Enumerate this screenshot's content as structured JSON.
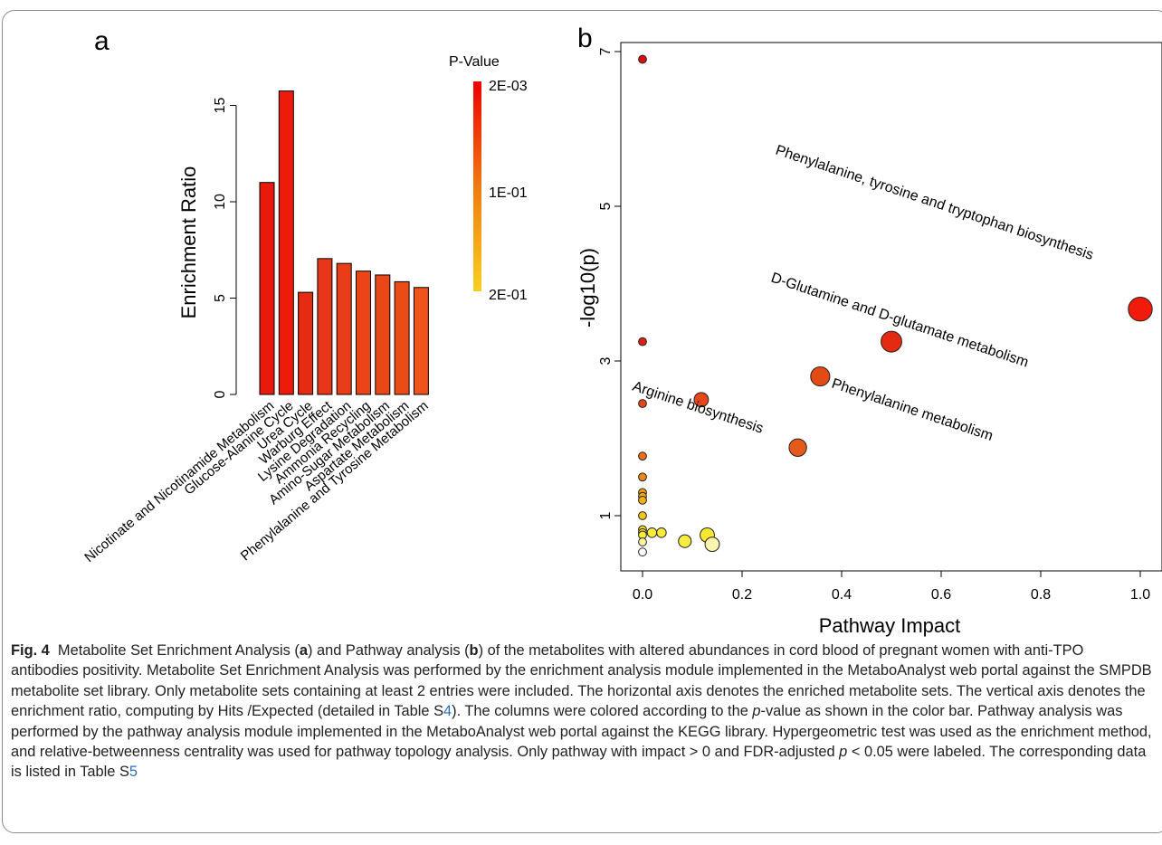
{
  "panel_a_letter": "a",
  "panel_b_letter": "b",
  "chart_data": [
    {
      "type": "bar",
      "panel": "a",
      "categories": [
        "Nicotinate and Nicotinamide Metabolism",
        "Glucose-Alanine Cycle",
        "Urea Cycle",
        "Warburg Effect",
        "Lysine Degradation",
        "Ammonia Recycling",
        "Amino-Sugar Metabolism",
        "Aspartate Metabolism",
        "Phenylalanine and Tyrosine Metabolism"
      ],
      "values": [
        11.0,
        15.75,
        5.3,
        7.05,
        6.8,
        6.4,
        6.2,
        5.85,
        5.55
      ],
      "bar_colors": [
        "#e8190d",
        "#ee1a0b",
        "#e52b12",
        "#e8361a",
        "#e93c18",
        "#ea4418",
        "#ea4718",
        "#eb4c17",
        "#ef531a"
      ],
      "ylabel": "Enrichment Ratio",
      "yticks": [
        "0",
        "5",
        "10",
        "15"
      ],
      "ylim": [
        0,
        16.5
      ],
      "legend": {
        "title": "P-Value",
        "labels": [
          "2E-03",
          "1E-01",
          "2E-01"
        ],
        "colors": [
          "#ee0000",
          "#f07a10",
          "#f8d020"
        ]
      }
    },
    {
      "type": "scatter",
      "panel": "b",
      "xlabel": "Pathway Impact",
      "ylabel": "-log10(p)",
      "xticks": [
        "0.0",
        "0.2",
        "0.4",
        "0.6",
        "0.8",
        "1.0"
      ],
      "yticks": [
        "1",
        "3",
        "5",
        "7"
      ],
      "xlim": [
        0,
        1
      ],
      "ylim": [
        0.4,
        7.0
      ],
      "points": [
        {
          "x": 0.0,
          "y": 6.9,
          "size": 1,
          "color": "#d91010"
        },
        {
          "x": 1.0,
          "y": 3.67,
          "size": 3,
          "color": "#f21a0a"
        },
        {
          "x": 0.5,
          "y": 3.25,
          "size": 2.6,
          "color": "#e42a10"
        },
        {
          "x": 0.0,
          "y": 3.25,
          "size": 1,
          "color": "#db2210"
        },
        {
          "x": 0.357,
          "y": 2.8,
          "size": 2.4,
          "color": "#e44a15"
        },
        {
          "x": 0.118,
          "y": 2.5,
          "size": 1.8,
          "color": "#e4471a"
        },
        {
          "x": 0.0,
          "y": 2.45,
          "size": 1,
          "color": "#e4471a"
        },
        {
          "x": 0.312,
          "y": 1.88,
          "size": 2.2,
          "color": "#e55a1a"
        },
        {
          "x": 0.0,
          "y": 1.77,
          "size": 1,
          "color": "#ea6f18"
        },
        {
          "x": 0.0,
          "y": 1.5,
          "size": 1,
          "color": "#ec8a18"
        },
        {
          "x": 0.0,
          "y": 1.3,
          "size": 1,
          "color": "#efa018"
        },
        {
          "x": 0.0,
          "y": 1.25,
          "size": 1,
          "color": "#efa818"
        },
        {
          "x": 0.0,
          "y": 1.2,
          "size": 1,
          "color": "#f0b018"
        },
        {
          "x": 0.0,
          "y": 1.0,
          "size": 1,
          "color": "#f3c41c"
        },
        {
          "x": 0.0,
          "y": 0.82,
          "size": 1,
          "color": "#f6d820"
        },
        {
          "x": 0.0,
          "y": 0.78,
          "size": 1,
          "color": "#f8e030"
        },
        {
          "x": 0.0,
          "y": 0.75,
          "size": 1,
          "color": "#faeb3a"
        },
        {
          "x": 0.019,
          "y": 0.78,
          "size": 1.2,
          "color": "#faec3a"
        },
        {
          "x": 0.038,
          "y": 0.78,
          "size": 1.2,
          "color": "#faec3a"
        },
        {
          "x": 0.13,
          "y": 0.75,
          "size": 1.8,
          "color": "#fae830"
        },
        {
          "x": 0.085,
          "y": 0.67,
          "size": 1.6,
          "color": "#f5ee40"
        },
        {
          "x": 0.0,
          "y": 0.66,
          "size": 1,
          "color": "#f8f4a0"
        },
        {
          "x": 0.14,
          "y": 0.63,
          "size": 1.8,
          "color": "#fbf5b0"
        },
        {
          "x": 0.0,
          "y": 0.53,
          "size": 1,
          "color": "#ffffff"
        }
      ],
      "annotations": [
        "Phenylalanine, tyrosine and tryptophan biosynthesis",
        "D-Glutamine and D-glutamate metabolism",
        "Arginine biosynthesis",
        "Phenylalanine metabolism"
      ]
    }
  ],
  "caption": {
    "label": "Fig. 4",
    "p1": "Metabolite Set Enrichment Analysis (",
    "a": "a",
    "p2": ") and Pathway analysis (",
    "b": "b",
    "p3": ") of the metabolites with altered abundances in cord blood of pregnant women with anti-TPO antibodies positivity. Metabolite Set Enrichment Analysis was performed by the enrichment analysis module implemented in the MetaboAnalyst web portal against the SMPDB metabolite set library. Only metabolite sets containing at least 2 entries were included. The horizontal axis denotes the enriched metabolite sets. The vertical axis denotes the enrichment ratio, computing by Hits /Expected (detailed in Table S",
    "ref1": "4",
    "p4": "). The columns were colored according to the ",
    "pvar1": "p",
    "p5": "-value as shown in the color bar. Pathway analysis was performed by the pathway analysis module implemented in the MetaboAnalyst web portal against the KEGG library. Hypergeometric test was used as the enrichment method, and relative-betweenness centrality was used for pathway topology analysis. Only pathway with impact > 0 and FDR-adjusted ",
    "pvar2": "p",
    "p6": " < 0.05 were labeled. The corresponding data is listed in Table S",
    "ref2": "5"
  }
}
